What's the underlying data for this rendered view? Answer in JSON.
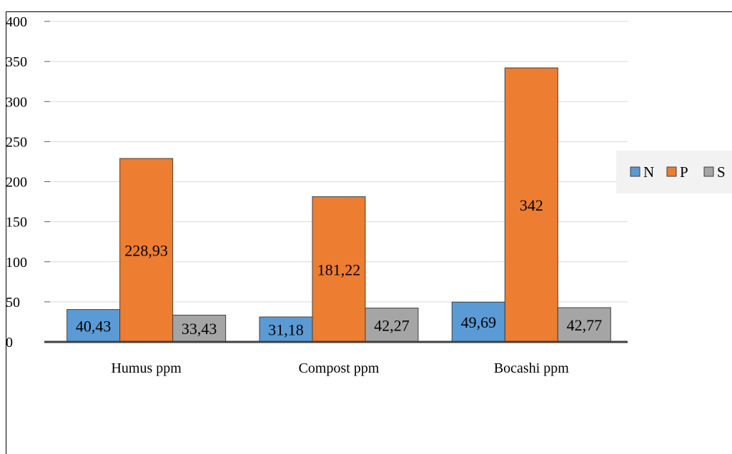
{
  "chart_data": {
    "type": "bar",
    "categories": [
      "Humus ppm",
      "Compost ppm",
      "Bocashi ppm"
    ],
    "series": [
      {
        "name": "N",
        "values": [
          40.43,
          31.18,
          49.69
        ],
        "labels": [
          "40,43",
          "31,18",
          "49,69"
        ],
        "color": "#5b9bd5"
      },
      {
        "name": "P",
        "values": [
          228.93,
          181.22,
          342
        ],
        "labels": [
          "228,93",
          "181,22",
          "342"
        ],
        "color": "#ed7d31"
      },
      {
        "name": "S",
        "values": [
          33.43,
          42.27,
          42.77
        ],
        "labels": [
          "33,43",
          "42,27",
          "42,77"
        ],
        "color": "#a5a5a5"
      }
    ],
    "yticks": [
      "0",
      "50",
      "100",
      "150",
      "200",
      "250",
      "300",
      "350",
      "400"
    ],
    "ylim": [
      0,
      400
    ],
    "grid": true,
    "legend_position": "right",
    "title": "",
    "xlabel": "",
    "ylabel": ""
  }
}
